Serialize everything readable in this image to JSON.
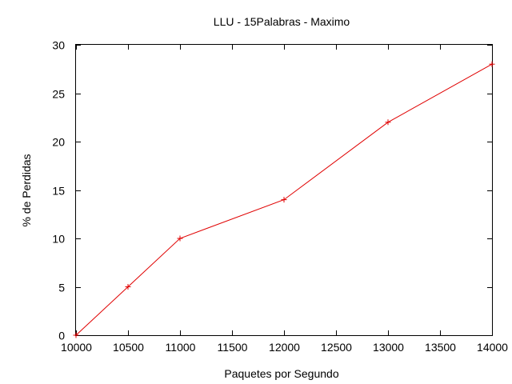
{
  "chart_data": {
    "type": "line",
    "title": "LLU - 15Palabras - Maximo",
    "xlabel": "Paquetes por Segundo",
    "ylabel": "% de Perdidas",
    "xlim": [
      10000,
      14000
    ],
    "ylim": [
      0,
      30
    ],
    "x_ticks": [
      "10000",
      "10500",
      "11000",
      "11500",
      "12000",
      "12500",
      "13000",
      "13500",
      "14000"
    ],
    "y_ticks": [
      "0",
      "5",
      "10",
      "15",
      "20",
      "25",
      "30"
    ],
    "grid": false,
    "legend": "none",
    "series": [
      {
        "color": "#e00000",
        "marker": "plus",
        "x": [
          10000,
          10500,
          11000,
          12000,
          13000,
          14000
        ],
        "y": [
          0,
          5,
          10,
          14,
          22,
          28
        ]
      }
    ]
  }
}
